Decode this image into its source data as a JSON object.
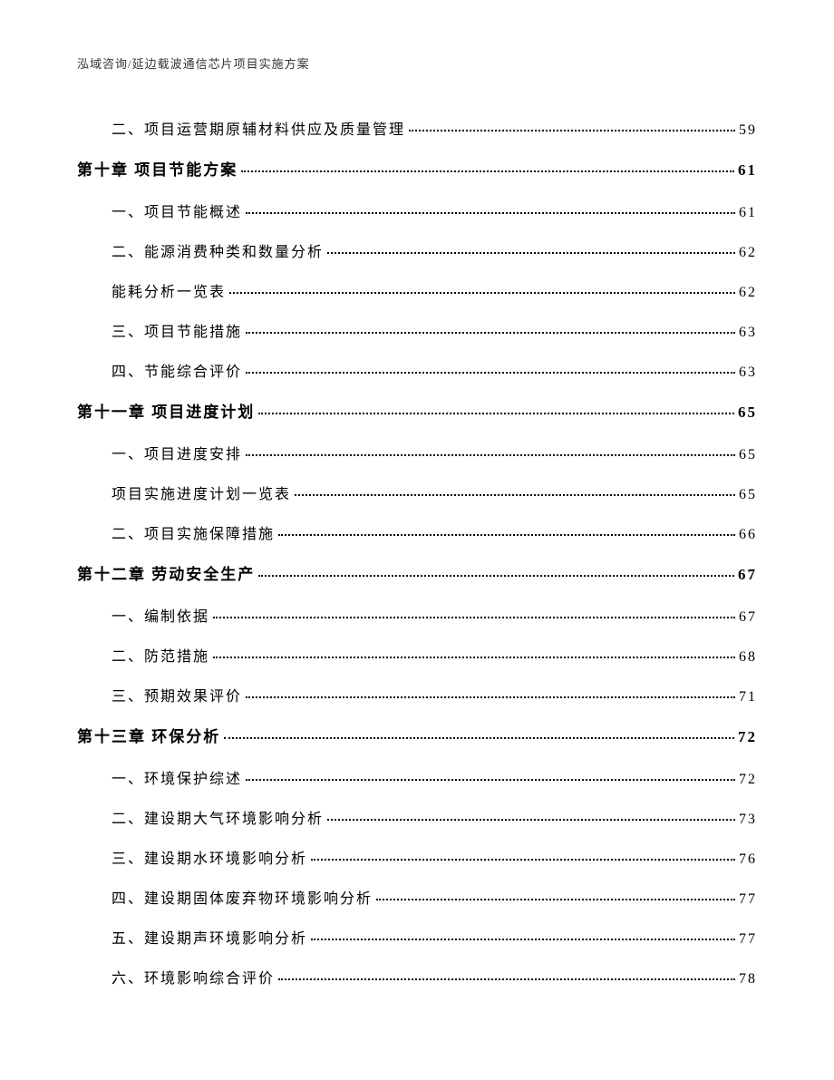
{
  "header": "泓域咨询/延边载波通信芯片项目实施方案",
  "entries": [
    {
      "type": "section",
      "label": "二、项目运营期原辅材料供应及质量管理",
      "page": "59"
    },
    {
      "type": "chapter",
      "label": "第十章 项目节能方案",
      "page": "61"
    },
    {
      "type": "section",
      "label": "一、项目节能概述",
      "page": "61"
    },
    {
      "type": "section",
      "label": "二、能源消费种类和数量分析",
      "page": "62"
    },
    {
      "type": "section",
      "label": "能耗分析一览表",
      "page": "62"
    },
    {
      "type": "section",
      "label": "三、项目节能措施",
      "page": "63"
    },
    {
      "type": "section",
      "label": "四、节能综合评价",
      "page": "63"
    },
    {
      "type": "chapter",
      "label": "第十一章 项目进度计划",
      "page": "65"
    },
    {
      "type": "section",
      "label": "一、项目进度安排",
      "page": "65"
    },
    {
      "type": "section",
      "label": "项目实施进度计划一览表",
      "page": "65"
    },
    {
      "type": "section",
      "label": "二、项目实施保障措施",
      "page": "66"
    },
    {
      "type": "chapter",
      "label": "第十二章 劳动安全生产",
      "page": "67"
    },
    {
      "type": "section",
      "label": "一、编制依据",
      "page": "67"
    },
    {
      "type": "section",
      "label": "二、防范措施",
      "page": "68"
    },
    {
      "type": "section",
      "label": "三、预期效果评价",
      "page": "71"
    },
    {
      "type": "chapter",
      "label": "第十三章 环保分析",
      "page": "72"
    },
    {
      "type": "section",
      "label": "一、环境保护综述",
      "page": "72"
    },
    {
      "type": "section",
      "label": "二、建设期大气环境影响分析",
      "page": "73"
    },
    {
      "type": "section",
      "label": "三、建设期水环境影响分析",
      "page": "76"
    },
    {
      "type": "section",
      "label": "四、建设期固体废弃物环境影响分析",
      "page": "77"
    },
    {
      "type": "section",
      "label": "五、建设期声环境影响分析",
      "page": "77"
    },
    {
      "type": "section",
      "label": "六、环境影响综合评价",
      "page": "78"
    }
  ]
}
